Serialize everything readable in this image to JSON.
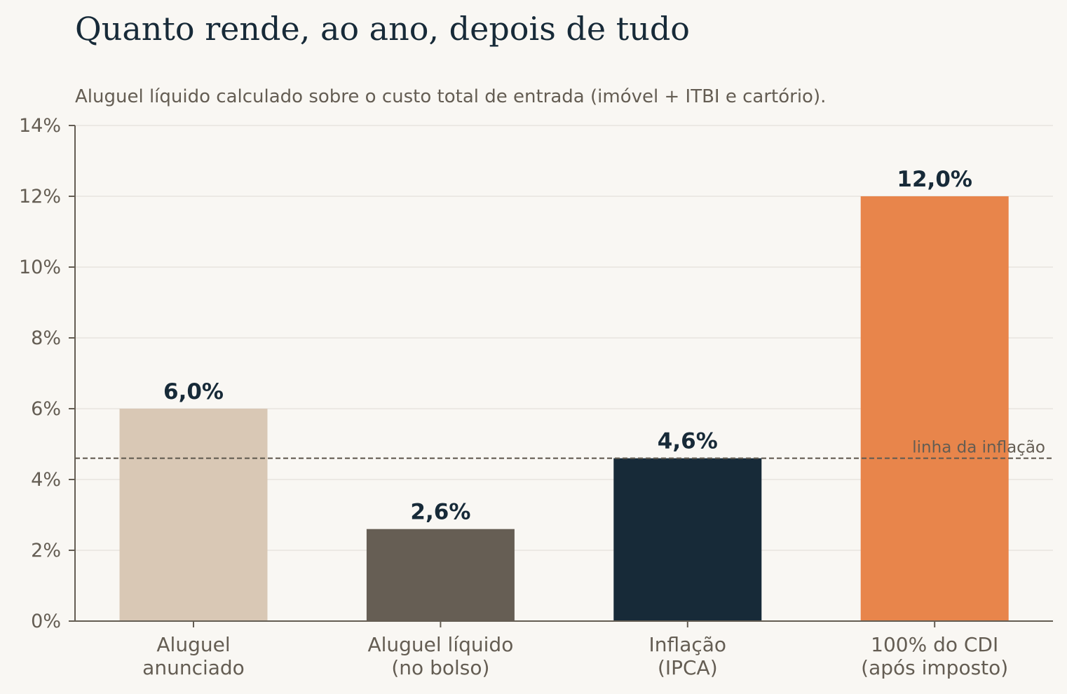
{
  "chart_data": {
    "type": "bar",
    "title": "Quanto rende, ao ano, depois de tudo",
    "subtitle": "Aluguel líquido calculado sobre o custo total de entrada (imóvel + ITBI e cartório).",
    "categories": [
      [
        "Aluguel",
        "anunciado"
      ],
      [
        "Aluguel líquido",
        "(no bolso)"
      ],
      [
        "Inflação",
        "(IPCA)"
      ],
      [
        "100% do CDI",
        "(após imposto)"
      ]
    ],
    "values": [
      6.0,
      2.6,
      4.6,
      12.0
    ],
    "value_labels": [
      "6,0%",
      "2,6%",
      "4,6%",
      "12,0%"
    ],
    "colors": [
      "#d9c8b5",
      "#665e54",
      "#172a38",
      "#e8854b"
    ],
    "ylim": [
      0,
      14
    ],
    "yticks": [
      0,
      2,
      4,
      6,
      8,
      10,
      12,
      14
    ],
    "ytick_labels": [
      "0%",
      "2%",
      "4%",
      "6%",
      "8%",
      "10%",
      "12%",
      "14%"
    ],
    "grid": true,
    "reference_line": {
      "value": 4.6,
      "label": "linha da inflação",
      "style": "dashed"
    }
  }
}
